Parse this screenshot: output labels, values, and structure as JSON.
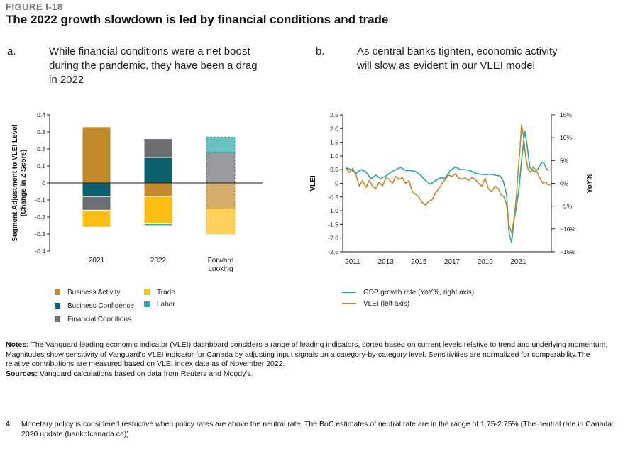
{
  "figure": {
    "label": "FIGURE I-18",
    "title": "The 2022 growth slowdown is led by financial conditions and trade"
  },
  "panel_a": {
    "letter": "a.",
    "title_lines": [
      "While financial conditions were a net boost",
      "during the pandemic, they have been a drag",
      "in 2022"
    ],
    "legend": [
      {
        "label": "Business Activity",
        "color": "#c28a2c"
      },
      {
        "label": "Business Confidence",
        "color": "#0b5f6e"
      },
      {
        "label": "Financial Conditions",
        "color": "#6e6f73"
      },
      {
        "label": "Trade",
        "color": "#fbbf14"
      },
      {
        "label": "Labor",
        "color": "#2aa8a6"
      }
    ]
  },
  "panel_b": {
    "letter": "b.",
    "title_lines": [
      "As central banks tighten, economic activity",
      "will slow as evident in our VLEI model"
    ],
    "legend": [
      {
        "label": "GDP growth rate (YoY%, right axis)",
        "color": "#27a39b"
      },
      {
        "label": "VLEI (left axis)",
        "color": "#c08a2b"
      }
    ]
  },
  "chart_data": [
    {
      "type": "bar",
      "stacked": true,
      "ylabel": "Segment Adjustment to VLEI Level (Change in Z Score)",
      "ylim": [
        -0.4,
        0.4
      ],
      "yticks": [
        "0.4",
        "0.3",
        "0.2",
        "0.1",
        "0",
        "-0.1",
        "-0.2",
        "-0.3",
        "-0.4"
      ],
      "categories": [
        "2021",
        "2022",
        "Forward Looking"
      ],
      "series": [
        {
          "name": "Business Activity",
          "values": [
            0.33,
            -0.08,
            -0.15
          ]
        },
        {
          "name": "Business Confidence",
          "values": [
            -0.08,
            0.15,
            0.0
          ]
        },
        {
          "name": "Financial Conditions",
          "values": [
            -0.08,
            0.11,
            0.18
          ]
        },
        {
          "name": "Trade",
          "values": [
            -0.1,
            -0.16,
            -0.15
          ]
        },
        {
          "name": "Labor",
          "values": [
            0.0,
            -0.01,
            0.09
          ]
        }
      ],
      "note": "Forward Looking bars drawn with lighter fill and dashed outline"
    },
    {
      "type": "line",
      "ylabel_left": "VLEI",
      "ylabel_right": "YoY%",
      "ylim_left": [
        -2.5,
        2.5
      ],
      "yticks_left": [
        "2.5",
        "2.0",
        "1.5",
        "1.0",
        "0.5",
        "0",
        "-0.5",
        "-1.0",
        "-1.5",
        "-2.0",
        "-2.5"
      ],
      "ylim_right": [
        -15,
        15
      ],
      "yticks_right": [
        "15%",
        "10%",
        "5%",
        "0%",
        "−5%",
        "−10%",
        "−15%"
      ],
      "xlim": [
        2010.4,
        2023.0
      ],
      "xticks": [
        "2011",
        "2013",
        "2015",
        "2017",
        "2019",
        "2021"
      ],
      "series": [
        {
          "name": "GDP growth rate (YoY%, right axis)",
          "axis": "right",
          "x": [
            2010.6,
            2010.9,
            2011.2,
            2011.5,
            2011.8,
            2012.1,
            2012.4,
            2012.7,
            2013.0,
            2013.3,
            2013.6,
            2013.9,
            2014.2,
            2014.5,
            2014.8,
            2015.1,
            2015.4,
            2015.7,
            2016.0,
            2016.3,
            2016.6,
            2016.9,
            2017.2,
            2017.5,
            2017.8,
            2018.1,
            2018.4,
            2018.7,
            2019.0,
            2019.3,
            2019.6,
            2019.9,
            2020.1,
            2020.3,
            2020.45,
            2020.6,
            2020.75,
            2020.9,
            2021.05,
            2021.2,
            2021.4,
            2021.55,
            2021.7,
            2021.85,
            2022.0,
            2022.2,
            2022.4,
            2022.55,
            2022.7,
            2022.85
          ],
          "y": [
            3.4,
            3.0,
            2.2,
            3.0,
            2.5,
            1.0,
            1.8,
            1.0,
            1.6,
            2.4,
            3.0,
            3.5,
            2.8,
            2.8,
            2.6,
            1.8,
            0.6,
            -0.2,
            0.6,
            1.2,
            1.2,
            2.8,
            3.6,
            3.0,
            3.0,
            2.8,
            2.2,
            2.0,
            1.9,
            2.0,
            1.8,
            1.6,
            0.5,
            -2.5,
            -11.0,
            -13.0,
            -8.0,
            -5.0,
            -1.0,
            5.0,
            11.5,
            8.0,
            3.5,
            2.8,
            2.5,
            3.2,
            4.5,
            4.5,
            3.2,
            2.8
          ]
        },
        {
          "name": "VLEI (left axis)",
          "axis": "left",
          "x": [
            2010.6,
            2010.8,
            2011.0,
            2011.2,
            2011.4,
            2011.6,
            2011.8,
            2012.0,
            2012.2,
            2012.4,
            2012.6,
            2012.8,
            2013.0,
            2013.2,
            2013.4,
            2013.6,
            2013.8,
            2014.0,
            2014.2,
            2014.4,
            2014.6,
            2014.8,
            2015.0,
            2015.2,
            2015.4,
            2015.6,
            2015.8,
            2016.0,
            2016.2,
            2016.4,
            2016.6,
            2016.8,
            2017.0,
            2017.2,
            2017.4,
            2017.6,
            2017.8,
            2018.0,
            2018.2,
            2018.4,
            2018.6,
            2018.8,
            2019.0,
            2019.2,
            2019.4,
            2019.6,
            2019.8,
            2020.0,
            2020.15,
            2020.3,
            2020.45,
            2020.6,
            2020.75,
            2020.9,
            2021.0,
            2021.1,
            2021.2,
            2021.3,
            2021.45,
            2021.6,
            2021.75,
            2021.9,
            2022.1,
            2022.3,
            2022.5,
            2022.65,
            2022.8,
            2022.95
          ],
          "y": [
            0.55,
            0.4,
            0.55,
            0.3,
            -0.1,
            0.1,
            -0.15,
            0.1,
            -0.1,
            -0.2,
            0.05,
            -0.1,
            0.2,
            0.15,
            0.0,
            0.25,
            0.15,
            0.2,
            0.0,
            0.1,
            -0.3,
            -0.4,
            -0.5,
            -0.7,
            -0.8,
            -0.65,
            -0.6,
            -0.35,
            -0.2,
            0.0,
            0.15,
            0.3,
            0.25,
            0.35,
            0.2,
            0.15,
            0.2,
            0.1,
            0.2,
            0.15,
            0.0,
            -0.1,
            0.2,
            -0.2,
            -0.3,
            -0.1,
            -0.2,
            -0.45,
            -0.5,
            -0.8,
            -1.55,
            -1.8,
            -1.3,
            -0.4,
            0.5,
            1.2,
            2.15,
            1.8,
            1.0,
            0.5,
            0.4,
            0.6,
            0.45,
            0.2,
            0.0,
            0.05,
            -0.05,
            -0.05
          ]
        }
      ]
    }
  ],
  "notes": {
    "notes_label": "Notes:",
    "notes_text": " The Vanguard leading economic indicator (VLEI) dashboard considers a range of leading indicators, sorted based on current levels relative to trend and underlying momentum. Magnitudes show sensitivity of Vanguard’s VLEI indicator for Canada by adjusting input signals on a category-by-category level. Sensitivities are normalized for comparability.The relative contributions are measured based on VLEI index data as of November 2022.",
    "sources_label": "Sources:",
    "sources_text": " Vanguard calculations based on data from Reuters and Moody’s."
  },
  "footnote": {
    "number": "4",
    "text": "Monetary policy is considered restrictive when policy rates are above the neutral rate. The BoC estimates of neutral rate are in the range of 1.75-2.75% (The neutral rate in Canada: 2020 update (bankofcanada.ca))"
  }
}
